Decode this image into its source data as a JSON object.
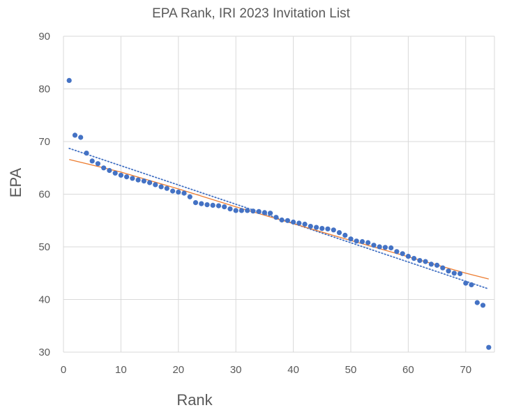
{
  "chart_data": {
    "type": "scatter",
    "title": "EPA Rank, IRI 2023 Invitation List",
    "xlabel": "Rank",
    "ylabel": "EPA",
    "xlim": [
      0,
      75
    ],
    "ylim": [
      30,
      90
    ],
    "x_ticks": [
      0,
      10,
      20,
      30,
      40,
      50,
      60,
      70
    ],
    "y_ticks": [
      30,
      40,
      50,
      60,
      70,
      80,
      90
    ],
    "grid": true,
    "colors": {
      "points": "#4472c4",
      "linear_trend": "#4472c4",
      "curve_trend": "#ed7d31"
    },
    "series": [
      {
        "x": [
          1,
          2,
          3,
          4,
          5,
          6,
          7,
          8,
          9,
          10,
          11,
          12,
          13,
          14,
          15,
          16,
          17,
          18,
          19,
          20,
          21,
          22,
          23,
          24,
          25,
          26,
          27,
          28,
          29,
          30,
          31,
          32,
          33,
          34,
          35,
          36,
          37,
          38,
          39,
          40,
          41,
          42,
          43,
          44,
          45,
          46,
          47,
          48,
          49,
          50,
          51,
          52,
          53,
          54,
          55,
          56,
          57,
          58,
          59,
          60,
          61,
          62,
          63,
          64,
          65,
          66,
          67,
          68,
          69,
          70,
          71,
          72,
          73,
          74
        ],
        "y": [
          81.6,
          71.2,
          70.8,
          67.8,
          66.3,
          65.8,
          65.0,
          64.5,
          64.0,
          63.6,
          63.3,
          63.0,
          62.7,
          62.5,
          62.2,
          61.8,
          61.4,
          61.1,
          60.6,
          60.4,
          60.2,
          59.5,
          58.4,
          58.2,
          58.0,
          57.9,
          57.8,
          57.6,
          57.2,
          56.9,
          56.9,
          56.9,
          56.8,
          56.7,
          56.5,
          56.4,
          55.6,
          55.1,
          55.0,
          54.7,
          54.5,
          54.3,
          53.9,
          53.7,
          53.5,
          53.4,
          53.2,
          52.7,
          52.2,
          51.5,
          51.1,
          51.0,
          50.8,
          50.3,
          50.0,
          49.9,
          49.8,
          49.1,
          48.7,
          48.2,
          47.8,
          47.4,
          47.2,
          46.7,
          46.5,
          46.0,
          45.4,
          45.0,
          44.9,
          43.1,
          42.8,
          39.4,
          38.9,
          30.9
        ]
      }
    ],
    "trendlines": [
      {
        "kind": "linear",
        "style": "dotted",
        "x": [
          1,
          74
        ],
        "y": [
          68.7,
          42.0
        ]
      },
      {
        "kind": "curve",
        "style": "solid",
        "x": [
          1,
          10,
          20,
          30,
          40,
          50,
          60,
          70,
          74
        ],
        "y": [
          66.6,
          64.2,
          61.0,
          57.6,
          54.4,
          51.2,
          48.1,
          45.0,
          43.9
        ]
      }
    ]
  }
}
